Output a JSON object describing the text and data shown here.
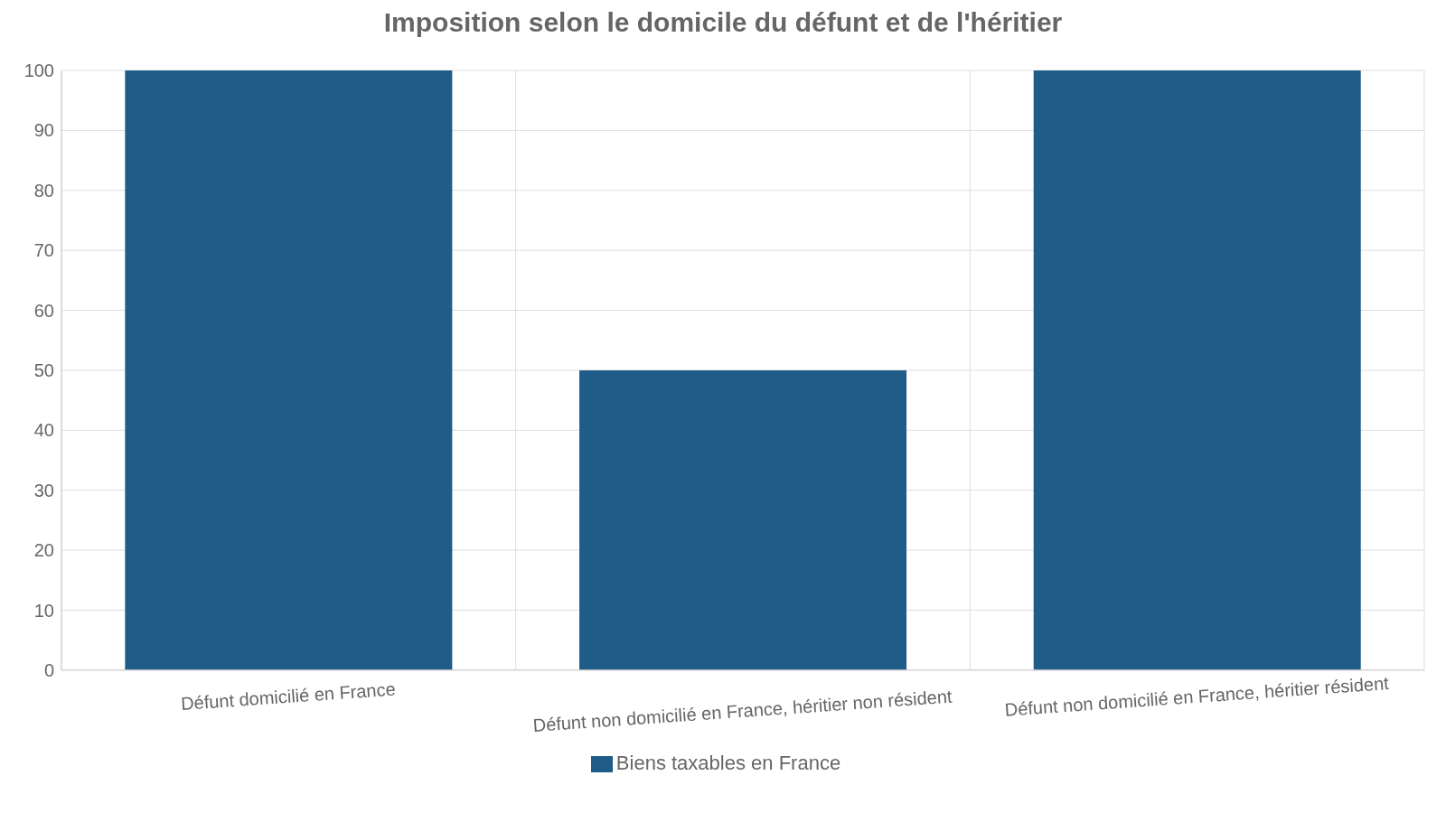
{
  "chart_data": {
    "type": "bar",
    "title": "Imposition selon le domicile du défunt et de l'héritier",
    "categories": [
      "Défunt domicilié en France",
      "Défunt non domicilié en France, héritier non résident",
      "Défunt non domicilié en France, héritier résident"
    ],
    "series": [
      {
        "name": "Biens taxables en France",
        "color": "#1f5c87",
        "values": [
          100,
          50,
          100
        ]
      }
    ],
    "ylim": [
      0,
      100
    ],
    "yticks": [
      0,
      10,
      20,
      30,
      40,
      50,
      60,
      70,
      80,
      90,
      100
    ],
    "grid": true,
    "legend": "bottom"
  }
}
